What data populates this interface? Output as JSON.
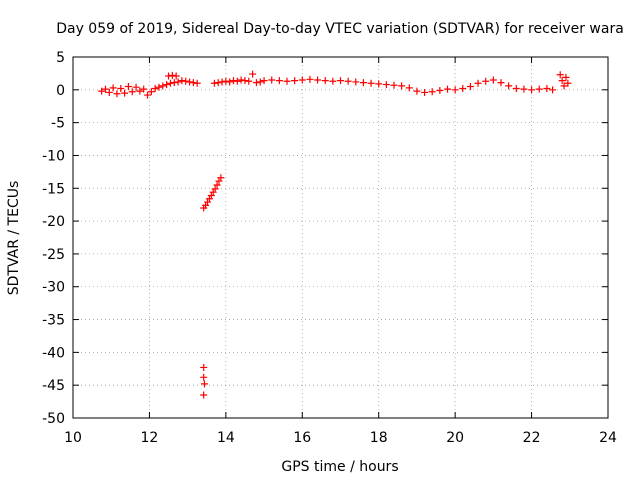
{
  "chart_data": {
    "type": "scatter",
    "title": "Day 059 of 2019, Sidereal Day-to-day VTEC variation (SDTVAR) for receiver wara",
    "xlabel": "GPS time / hours",
    "ylabel": "SDTVAR / TECUs",
    "xlim": [
      10,
      24
    ],
    "ylim": [
      -50,
      5
    ],
    "xticks": [
      10,
      12,
      14,
      16,
      18,
      20,
      22,
      24
    ],
    "yticks": [
      5,
      0,
      -5,
      -10,
      -15,
      -20,
      -25,
      -30,
      -35,
      -40,
      -45,
      -50
    ],
    "grid": true,
    "marker": "+",
    "color": "#ff0000",
    "series": [
      {
        "name": "SDTVAR",
        "points": [
          [
            10.75,
            -0.2
          ],
          [
            10.85,
            0.1
          ],
          [
            10.95,
            -0.4
          ],
          [
            11.05,
            0.3
          ],
          [
            11.15,
            -0.6
          ],
          [
            11.25,
            0.2
          ],
          [
            11.35,
            -0.5
          ],
          [
            11.45,
            0.5
          ],
          [
            11.55,
            -0.3
          ],
          [
            11.65,
            0.4
          ],
          [
            11.75,
            -0.2
          ],
          [
            11.85,
            0.1
          ],
          [
            11.95,
            -0.8
          ],
          [
            12.05,
            -0.3
          ],
          [
            12.15,
            0.2
          ],
          [
            12.25,
            0.4
          ],
          [
            12.35,
            0.6
          ],
          [
            12.45,
            0.8
          ],
          [
            12.55,
            1.0
          ],
          [
            12.65,
            1.1
          ],
          [
            12.75,
            1.2
          ],
          [
            12.85,
            1.4
          ],
          [
            12.95,
            1.3
          ],
          [
            13.05,
            1.2
          ],
          [
            13.15,
            1.1
          ],
          [
            13.25,
            1.0
          ],
          [
            12.5,
            2.1
          ],
          [
            12.6,
            2.2
          ],
          [
            12.7,
            2.1
          ],
          [
            13.7,
            1.0
          ],
          [
            13.8,
            1.1
          ],
          [
            13.9,
            1.2
          ],
          [
            14.0,
            1.3
          ],
          [
            14.1,
            1.2
          ],
          [
            14.2,
            1.4
          ],
          [
            14.3,
            1.3
          ],
          [
            14.4,
            1.5
          ],
          [
            14.5,
            1.4
          ],
          [
            14.6,
            1.3
          ],
          [
            14.7,
            2.4
          ],
          [
            14.8,
            1.1
          ],
          [
            14.9,
            1.2
          ],
          [
            15.0,
            1.4
          ],
          [
            15.2,
            1.5
          ],
          [
            15.4,
            1.4
          ],
          [
            15.6,
            1.3
          ],
          [
            15.8,
            1.4
          ],
          [
            16.0,
            1.5
          ],
          [
            16.2,
            1.6
          ],
          [
            16.4,
            1.5
          ],
          [
            16.6,
            1.4
          ],
          [
            16.8,
            1.3
          ],
          [
            17.0,
            1.4
          ],
          [
            17.2,
            1.3
          ],
          [
            17.4,
            1.2
          ],
          [
            17.6,
            1.1
          ],
          [
            17.8,
            1.0
          ],
          [
            18.0,
            0.9
          ],
          [
            18.2,
            0.8
          ],
          [
            18.4,
            0.7
          ],
          [
            18.6,
            0.6
          ],
          [
            18.8,
            0.3
          ],
          [
            19.0,
            -0.2
          ],
          [
            19.2,
            -0.4
          ],
          [
            19.4,
            -0.3
          ],
          [
            19.6,
            -0.1
          ],
          [
            19.8,
            0.1
          ],
          [
            20.0,
            0.0
          ],
          [
            20.2,
            0.2
          ],
          [
            20.4,
            0.5
          ],
          [
            20.6,
            1.0
          ],
          [
            20.8,
            1.3
          ],
          [
            21.0,
            1.5
          ],
          [
            21.2,
            1.1
          ],
          [
            21.4,
            0.6
          ],
          [
            21.6,
            0.2
          ],
          [
            21.8,
            0.1
          ],
          [
            22.0,
            0.0
          ],
          [
            22.2,
            0.1
          ],
          [
            22.4,
            0.2
          ],
          [
            22.55,
            0.0
          ],
          [
            22.75,
            2.3
          ],
          [
            22.8,
            1.4
          ],
          [
            22.85,
            0.6
          ],
          [
            22.9,
            1.9
          ],
          [
            22.95,
            1.0
          ],
          [
            13.42,
            -18.0
          ],
          [
            13.47,
            -17.6
          ],
          [
            13.52,
            -17.1
          ],
          [
            13.57,
            -16.6
          ],
          [
            13.62,
            -16.1
          ],
          [
            13.67,
            -15.6
          ],
          [
            13.72,
            -15.1
          ],
          [
            13.77,
            -14.5
          ],
          [
            13.82,
            -13.9
          ],
          [
            13.87,
            -13.4
          ],
          [
            13.42,
            -42.3
          ],
          [
            13.42,
            -43.8
          ],
          [
            13.44,
            -44.8
          ],
          [
            13.42,
            -46.5
          ]
        ]
      }
    ]
  }
}
